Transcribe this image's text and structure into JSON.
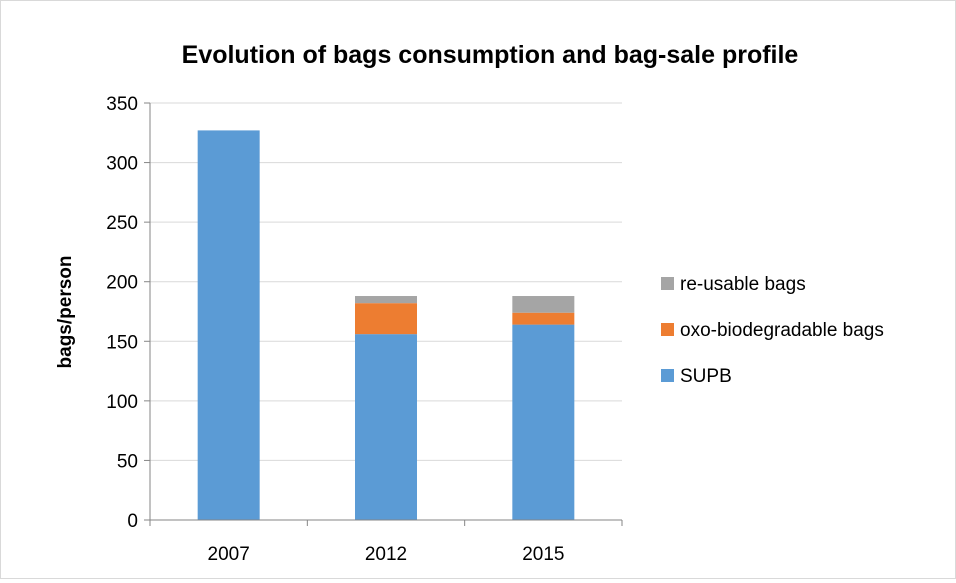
{
  "chart_data": {
    "type": "bar",
    "stacked": true,
    "title": "Evolution of bags consumption and bag-sale profile",
    "xlabel": "",
    "ylabel": "bags/person",
    "categories": [
      "2007",
      "2012",
      "2015"
    ],
    "ylim": [
      0,
      350
    ],
    "yticks": [
      0,
      50,
      100,
      150,
      200,
      250,
      300,
      350
    ],
    "grid": true,
    "legend_position": "right",
    "series": [
      {
        "name": "SUPB",
        "values": [
          327,
          156,
          164
        ],
        "color": "#5b9bd5"
      },
      {
        "name": "oxo-biodegradable bags",
        "values": [
          0,
          26,
          10
        ],
        "color": "#ed7d31"
      },
      {
        "name": "re-usable bags",
        "values": [
          0,
          6,
          14
        ],
        "color": "#a5a5a5"
      }
    ]
  }
}
